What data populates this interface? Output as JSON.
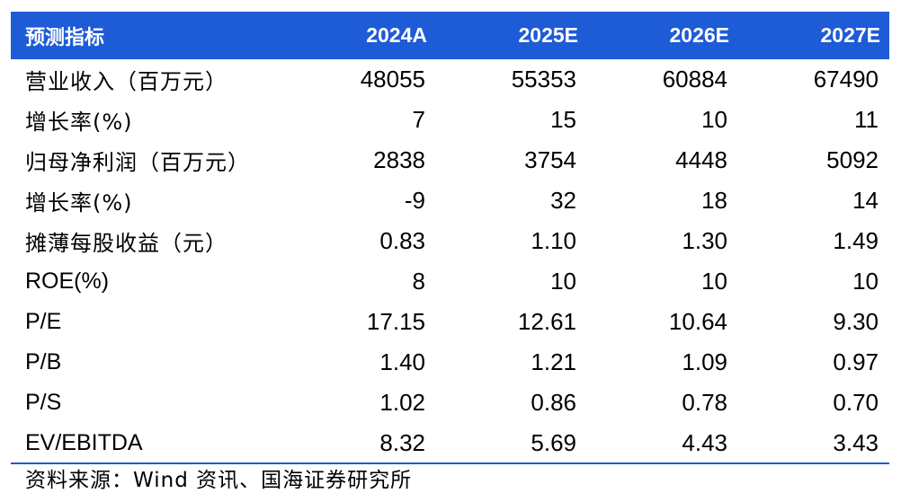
{
  "table": {
    "headers": [
      "预测指标",
      "2024A",
      "2025E",
      "2026E",
      "2027E"
    ],
    "rows": [
      {
        "label": "营业收入（百万元）",
        "values": [
          "48055",
          "55353",
          "60884",
          "67490"
        ]
      },
      {
        "label": "增长率(%)",
        "values": [
          "7",
          "15",
          "10",
          "11"
        ]
      },
      {
        "label": "归母净利润（百万元）",
        "values": [
          "2838",
          "3754",
          "4448",
          "5092"
        ]
      },
      {
        "label": "增长率(%)",
        "values": [
          "-9",
          "32",
          "18",
          "14"
        ]
      },
      {
        "label": "摊薄每股收益（元）",
        "values": [
          "0.83",
          "1.10",
          "1.30",
          "1.49"
        ]
      },
      {
        "label": "ROE(%)",
        "values": [
          "8",
          "10",
          "10",
          "10"
        ]
      },
      {
        "label": "P/E",
        "values": [
          "17.15",
          "12.61",
          "10.64",
          "9.30"
        ]
      },
      {
        "label": "P/B",
        "values": [
          "1.40",
          "1.21",
          "1.09",
          "0.97"
        ]
      },
      {
        "label": "P/S",
        "values": [
          "1.02",
          "0.86",
          "0.78",
          "0.70"
        ]
      },
      {
        "label": "EV/EBITDA",
        "values": [
          "8.32",
          "5.69",
          "4.43",
          "3.43"
        ]
      }
    ]
  },
  "source": "资料来源：Wind 资讯、国海证券研究所",
  "colors": {
    "header_bg": "#1e5bd6",
    "header_text": "#ffffff",
    "rule": "#1e5bd6"
  }
}
